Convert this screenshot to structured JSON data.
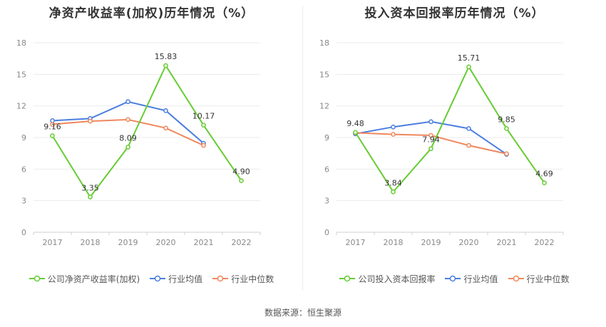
{
  "source_note": "数据来源：恒生聚源",
  "chart_data": [
    {
      "type": "line",
      "title": "净资产收益率(加权)历年情况（%）",
      "categories": [
        "2017",
        "2018",
        "2019",
        "2020",
        "2021",
        "2022"
      ],
      "ylim": [
        0,
        18
      ],
      "yticks": [
        "0",
        "3",
        "6",
        "9",
        "12",
        "15",
        "18"
      ],
      "grid": true,
      "legend_position": "bottom",
      "series": [
        {
          "name": "公司净资产收益率(加权)",
          "color": "#66cc33",
          "values": [
            9.16,
            3.35,
            8.09,
            15.83,
            10.17,
            4.9
          ],
          "labels": [
            "9.16",
            "3.35",
            "8.09",
            "15.83",
            "10.17",
            "4.90"
          ]
        },
        {
          "name": "行业均值",
          "color": "#4a7ee0",
          "values": [
            10.6,
            10.8,
            12.4,
            11.55,
            8.45,
            null
          ]
        },
        {
          "name": "行业中位数",
          "color": "#f0875d",
          "values": [
            10.25,
            10.55,
            10.7,
            9.9,
            8.25,
            null
          ]
        }
      ]
    },
    {
      "type": "line",
      "title": "投入资本回报率历年情况（%）",
      "categories": [
        "2017",
        "2018",
        "2019",
        "2020",
        "2021",
        "2022"
      ],
      "ylim": [
        0,
        18
      ],
      "yticks": [
        "0",
        "3",
        "6",
        "9",
        "12",
        "15",
        "18"
      ],
      "grid": true,
      "legend_position": "bottom",
      "series": [
        {
          "name": "公司投入资本回报率",
          "color": "#66cc33",
          "values": [
            9.48,
            3.84,
            7.94,
            15.71,
            9.85,
            4.69
          ],
          "labels": [
            "9.48",
            "3.84",
            "7.94",
            "15.71",
            "9.85",
            "4.69"
          ]
        },
        {
          "name": "行业均值",
          "color": "#4a7ee0",
          "values": [
            9.35,
            10.0,
            10.5,
            9.85,
            7.4,
            null
          ]
        },
        {
          "name": "行业中位数",
          "color": "#f0875d",
          "values": [
            9.45,
            9.3,
            9.2,
            8.25,
            7.45,
            null
          ]
        }
      ]
    }
  ]
}
